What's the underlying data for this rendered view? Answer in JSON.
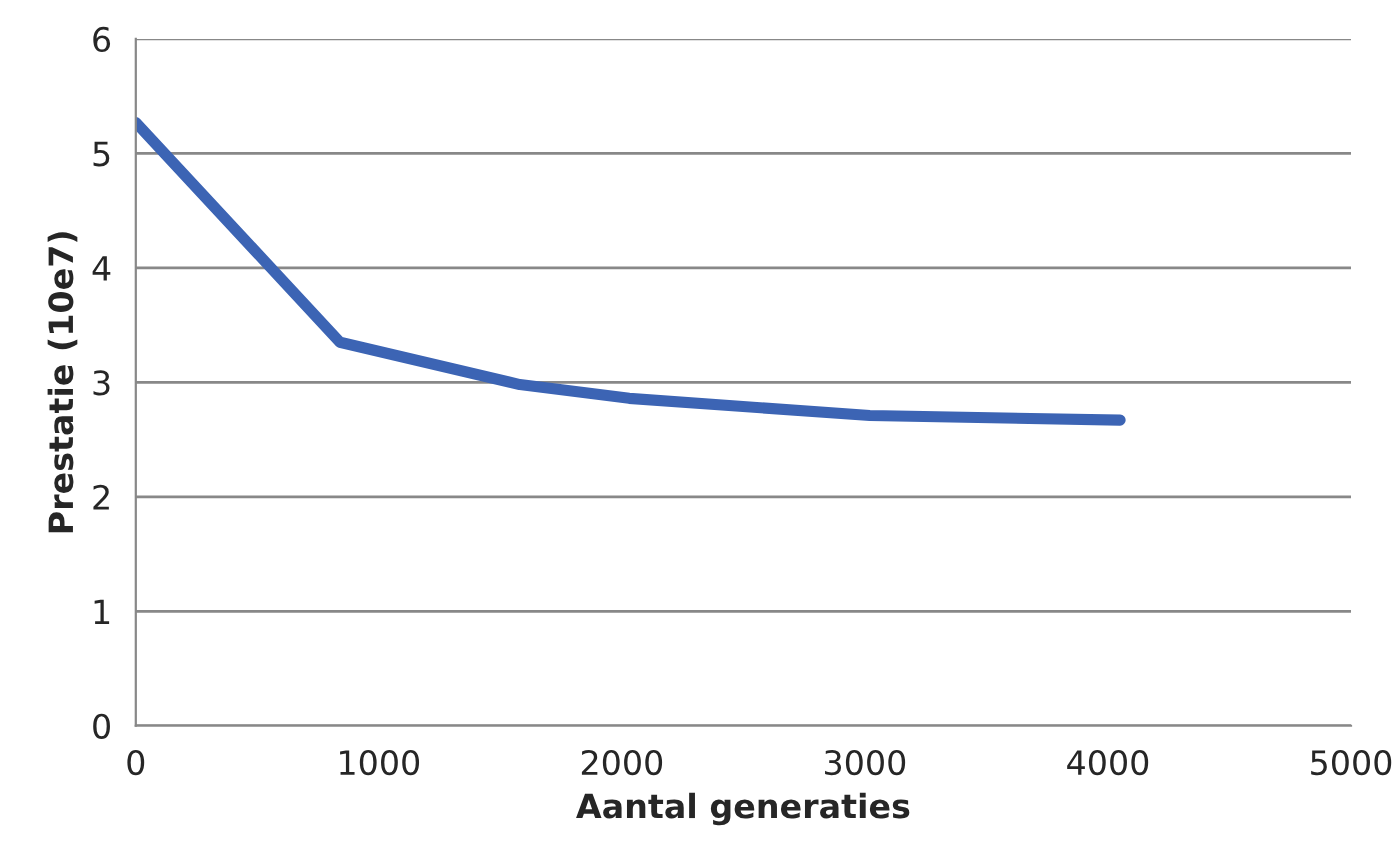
{
  "chart_data": {
    "type": "line",
    "xlabel": "Aantal generaties",
    "ylabel": "Prestatie (10e7)",
    "x": [
      0,
      840,
      1580,
      2030,
      3020,
      4050
    ],
    "series": [
      {
        "color": "#3c64b4",
        "values": [
          5.27,
          3.35,
          2.98,
          2.86,
          2.71,
          2.67
        ]
      }
    ],
    "xlim": [
      0,
      5000
    ],
    "xticks": [
      0,
      1000,
      2000,
      3000,
      4000,
      5000
    ],
    "ylim": [
      0,
      6
    ],
    "yticks": [
      0,
      1,
      2,
      3,
      4,
      5,
      6
    ],
    "grid": "y",
    "legend": false,
    "marker": "none",
    "line_style": "solid"
  }
}
